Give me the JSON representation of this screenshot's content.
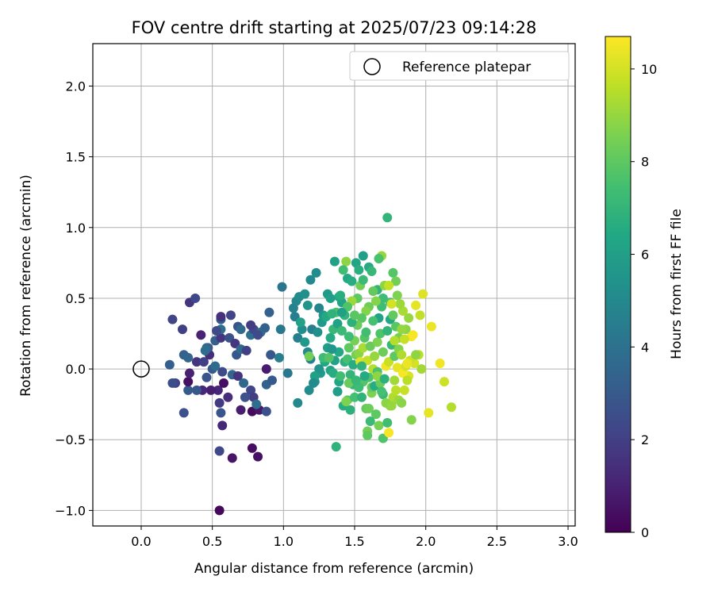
{
  "chart_data": {
    "type": "scatter",
    "title": "FOV centre drift starting at 2025/07/23 09:14:28",
    "xlabel": "Angular distance from reference (arcmin)",
    "ylabel": "Rotation from reference (arcmin)",
    "xlim": [
      -0.34,
      3.05
    ],
    "ylim": [
      -1.11,
      2.3
    ],
    "xticks": [
      0.0,
      0.5,
      1.0,
      1.5,
      2.0,
      2.5,
      3.0
    ],
    "xtick_labels": [
      "0.0",
      "0.5",
      "1.0",
      "1.5",
      "2.0",
      "2.5",
      "3.0"
    ],
    "yticks": [
      -1.0,
      -0.5,
      0.0,
      0.5,
      1.0,
      1.5,
      2.0
    ],
    "ytick_labels": [
      "−1.0",
      "−0.5",
      "0.0",
      "0.5",
      "1.0",
      "1.5",
      "2.0"
    ],
    "grid": true,
    "legend": {
      "placement": "top-right",
      "entries": [
        "Reference platepar"
      ]
    },
    "reference_point": {
      "x": 0.0,
      "y": 0.0,
      "label": "Reference platepar"
    },
    "colorbar": {
      "label": "Hours from first FF file",
      "colormap": "viridis",
      "range": [
        0,
        10.7
      ],
      "ticks": [
        0,
        2,
        4,
        6,
        8,
        10
      ],
      "tick_labels": [
        "0",
        "2",
        "4",
        "6",
        "8",
        "10"
      ]
    },
    "points": [
      [
        0.55,
        -1.0,
        0.2
      ],
      [
        0.64,
        -0.63,
        0.6
      ],
      [
        0.78,
        -0.56,
        0.4
      ],
      [
        0.82,
        -0.62,
        0.5
      ],
      [
        0.55,
        -0.58,
        2.3
      ],
      [
        0.57,
        -0.4,
        1.2
      ],
      [
        0.56,
        -0.31,
        2.8
      ],
      [
        0.78,
        -0.3,
        0.3
      ],
      [
        0.7,
        -0.29,
        0.9
      ],
      [
        0.83,
        -0.29,
        0.7
      ],
      [
        0.88,
        -0.3,
        2.6
      ],
      [
        0.3,
        -0.31,
        2.7
      ],
      [
        0.55,
        -0.24,
        1.8
      ],
      [
        0.61,
        -0.2,
        1.4
      ],
      [
        0.54,
        -0.15,
        1.1
      ],
      [
        0.49,
        -0.15,
        0.9
      ],
      [
        0.43,
        -0.15,
        1.2
      ],
      [
        0.39,
        -0.15,
        2.9
      ],
      [
        0.33,
        -0.15,
        3.0
      ],
      [
        0.24,
        -0.1,
        2.1
      ],
      [
        0.22,
        -0.1,
        2.5
      ],
      [
        0.33,
        -0.09,
        0.5
      ],
      [
        0.34,
        -0.03,
        1.0
      ],
      [
        0.2,
        0.03,
        3.2
      ],
      [
        0.46,
        -0.06,
        2.8
      ],
      [
        0.5,
        0.0,
        3.0
      ],
      [
        0.57,
        -0.02,
        2.4
      ],
      [
        0.58,
        -0.1,
        0.4
      ],
      [
        0.64,
        -0.04,
        3.5
      ],
      [
        0.68,
        -0.05,
        1.6
      ],
      [
        0.72,
        -0.1,
        3.6
      ],
      [
        0.77,
        -0.15,
        2.2
      ],
      [
        0.79,
        -0.2,
        1.9
      ],
      [
        0.81,
        -0.25,
        3.8
      ],
      [
        0.73,
        -0.2,
        2.7
      ],
      [
        0.88,
        -0.11,
        3.4
      ],
      [
        0.92,
        -0.08,
        3.0
      ],
      [
        0.88,
        0.0,
        0.8
      ],
      [
        0.91,
        0.1,
        2.9
      ],
      [
        0.3,
        0.1,
        3.3
      ],
      [
        0.33,
        0.08,
        3.5
      ],
      [
        0.39,
        0.05,
        1.6
      ],
      [
        0.44,
        0.05,
        2.0
      ],
      [
        0.48,
        0.1,
        1.4
      ],
      [
        0.52,
        0.02,
        3.7
      ],
      [
        0.47,
        0.15,
        2.6
      ],
      [
        0.52,
        0.2,
        3.2
      ],
      [
        0.56,
        0.22,
        1.7
      ],
      [
        0.56,
        0.28,
        3.9
      ],
      [
        0.53,
        0.27,
        2.4
      ],
      [
        0.56,
        0.35,
        3.0
      ],
      [
        0.56,
        0.37,
        1.5
      ],
      [
        0.63,
        0.38,
        2.2
      ],
      [
        0.62,
        0.22,
        2.6
      ],
      [
        0.66,
        0.18,
        1.7
      ],
      [
        0.67,
        0.1,
        2.9
      ],
      [
        0.7,
        0.14,
        3.7
      ],
      [
        0.74,
        0.13,
        2.0
      ],
      [
        0.77,
        0.24,
        3.9
      ],
      [
        0.79,
        0.28,
        2.3
      ],
      [
        0.84,
        0.26,
        3.8
      ],
      [
        0.68,
        0.3,
        2.7
      ],
      [
        0.7,
        0.28,
        3.6
      ],
      [
        0.77,
        0.31,
        1.9
      ],
      [
        0.82,
        0.24,
        2.4
      ],
      [
        0.87,
        0.29,
        3.4
      ],
      [
        0.9,
        0.4,
        3.3
      ],
      [
        0.22,
        0.35,
        2.2
      ],
      [
        0.29,
        0.28,
        2.0
      ],
      [
        0.34,
        0.47,
        1.6
      ],
      [
        0.38,
        0.5,
        2.3
      ],
      [
        0.42,
        0.24,
        1.0
      ],
      [
        0.46,
        0.15,
        3.5
      ],
      [
        0.45,
        0.13,
        3.8
      ],
      [
        0.99,
        0.58,
        4.1
      ],
      [
        0.98,
        0.28,
        4.3
      ],
      [
        0.97,
        0.08,
        4.5
      ],
      [
        1.03,
        -0.03,
        4.3
      ],
      [
        1.07,
        0.43,
        4.7
      ],
      [
        1.08,
        0.37,
        4.5
      ],
      [
        1.09,
        0.48,
        4.9
      ],
      [
        1.11,
        0.51,
        5.1
      ],
      [
        1.1,
        0.22,
        4.6
      ],
      [
        1.15,
        0.53,
        5.3
      ],
      [
        1.17,
        0.45,
        5.5
      ],
      [
        1.19,
        0.63,
        5.0
      ],
      [
        1.23,
        0.68,
        5.2
      ],
      [
        1.25,
        0.43,
        4.8
      ],
      [
        1.28,
        0.38,
        5.6
      ],
      [
        1.31,
        0.53,
        5.7
      ],
      [
        1.33,
        0.5,
        6.0
      ],
      [
        1.36,
        0.76,
        6.1
      ],
      [
        1.39,
        0.51,
        6.3
      ],
      [
        1.41,
        0.47,
        6.2
      ],
      [
        1.45,
        0.64,
        6.4
      ],
      [
        1.48,
        0.62,
        6.6
      ],
      [
        1.51,
        0.75,
        6.3
      ],
      [
        1.53,
        0.7,
        6.7
      ],
      [
        1.56,
        0.8,
        6.0
      ],
      [
        1.6,
        0.72,
        6.5
      ],
      [
        1.62,
        0.69,
        7.1
      ],
      [
        1.66,
        0.56,
        6.9
      ],
      [
        1.7,
        0.5,
        7.3
      ],
      [
        1.73,
        1.07,
        7.0
      ],
      [
        1.75,
        0.47,
        7.5
      ],
      [
        1.77,
        0.68,
        7.8
      ],
      [
        1.1,
        -0.24,
        5.0
      ],
      [
        1.18,
        -0.15,
        5.2
      ],
      [
        1.22,
        -0.09,
        5.4
      ],
      [
        1.26,
        -0.03,
        5.8
      ],
      [
        1.33,
        -0.01,
        6.2
      ],
      [
        1.37,
        -0.55,
        6.9
      ],
      [
        1.38,
        -0.16,
        5.9
      ],
      [
        1.39,
        -0.09,
        6.3
      ],
      [
        1.42,
        -0.26,
        6.6
      ],
      [
        1.45,
        -0.22,
        7.9
      ],
      [
        1.47,
        -0.29,
        6.8
      ],
      [
        1.49,
        -0.11,
        7.0
      ],
      [
        1.5,
        -0.2,
        7.5
      ],
      [
        1.55,
        -0.2,
        6.9
      ],
      [
        1.56,
        -0.09,
        7.8
      ],
      [
        1.58,
        -0.28,
        8.1
      ],
      [
        1.59,
        -0.44,
        8.4
      ],
      [
        1.6,
        -0.28,
        8.3
      ],
      [
        1.62,
        -0.17,
        8.6
      ],
      [
        1.65,
        -0.32,
        8.0
      ],
      [
        1.67,
        -0.4,
        8.5
      ],
      [
        1.7,
        -0.49,
        7.7
      ],
      [
        1.73,
        -0.38,
        7.4
      ],
      [
        1.74,
        -0.45,
        10.6
      ],
      [
        1.75,
        -0.26,
        8.9
      ],
      [
        1.77,
        -0.2,
        9.4
      ],
      [
        1.79,
        -0.15,
        9.6
      ],
      [
        1.81,
        -0.22,
        9.1
      ],
      [
        1.83,
        -0.24,
        8.8
      ],
      [
        1.85,
        -0.15,
        9.8
      ],
      [
        1.88,
        -0.05,
        10.1
      ],
      [
        1.9,
        -0.36,
        8.7
      ],
      [
        1.92,
        0.04,
        10.0
      ],
      [
        1.95,
        0.1,
        9.6
      ],
      [
        1.97,
        0.0,
        9.2
      ],
      [
        2.02,
        -0.31,
        10.3
      ],
      [
        2.04,
        0.3,
        10.4
      ],
      [
        2.1,
        0.04,
        10.5
      ],
      [
        2.13,
        -0.09,
        9.9
      ],
      [
        2.18,
        -0.27,
        9.5
      ],
      [
        1.98,
        0.53,
        10.2
      ],
      [
        1.96,
        0.38,
        9.7
      ],
      [
        1.93,
        0.45,
        10.3
      ],
      [
        1.9,
        0.23,
        10.5
      ],
      [
        1.88,
        0.36,
        9.0
      ],
      [
        1.86,
        0.28,
        8.8
      ],
      [
        1.84,
        0.41,
        9.3
      ],
      [
        1.82,
        0.46,
        9.1
      ],
      [
        1.8,
        0.52,
        8.6
      ],
      [
        1.79,
        0.62,
        8.4
      ],
      [
        1.71,
        0.59,
        8.9
      ],
      [
        1.69,
        0.8,
        9.0
      ],
      [
        1.67,
        0.78,
        7.6
      ],
      [
        1.63,
        0.55,
        8.1
      ],
      [
        1.6,
        0.44,
        8.3
      ],
      [
        1.58,
        0.41,
        8.7
      ],
      [
        1.55,
        0.36,
        7.9
      ],
      [
        1.52,
        0.31,
        8.2
      ],
      [
        1.5,
        0.2,
        8.5
      ],
      [
        1.46,
        0.15,
        8.0
      ],
      [
        1.44,
        0.76,
        8.9
      ],
      [
        1.42,
        0.7,
        7.4
      ],
      [
        1.4,
        0.52,
        6.7
      ],
      [
        1.37,
        0.4,
        7.6
      ],
      [
        1.35,
        0.28,
        7.1
      ],
      [
        1.33,
        0.22,
        6.5
      ],
      [
        1.31,
        0.15,
        5.9
      ],
      [
        1.29,
        0.05,
        6.4
      ],
      [
        1.28,
        0.08,
        7.3
      ],
      [
        1.25,
        0.0,
        5.5
      ],
      [
        1.22,
        -0.05,
        6.0
      ],
      [
        1.19,
        0.07,
        4.7
      ],
      [
        1.17,
        0.12,
        5.0
      ],
      [
        1.15,
        0.19,
        5.7
      ],
      [
        1.13,
        0.28,
        5.2
      ],
      [
        1.12,
        0.33,
        6.1
      ],
      [
        1.2,
        0.28,
        4.6
      ],
      [
        1.24,
        0.26,
        5.3
      ],
      [
        1.27,
        0.33,
        5.8
      ],
      [
        1.3,
        0.37,
        6.4
      ],
      [
        1.34,
        0.39,
        6.9
      ],
      [
        1.38,
        0.32,
        6.2
      ],
      [
        1.41,
        0.27,
        7.2
      ],
      [
        1.43,
        0.05,
        6.8
      ],
      [
        1.45,
        0.07,
        7.5
      ],
      [
        1.47,
        -0.04,
        7.0
      ],
      [
        1.49,
        0.03,
        6.6
      ],
      [
        1.51,
        0.1,
        8.4
      ],
      [
        1.53,
        0.11,
        8.8
      ],
      [
        1.54,
        0.05,
        10.2
      ],
      [
        1.56,
        0.15,
        9.3
      ],
      [
        1.57,
        0.22,
        7.8
      ],
      [
        1.59,
        0.06,
        9.7
      ],
      [
        1.61,
        0.16,
        8.2
      ],
      [
        1.63,
        0.0,
        9.5
      ],
      [
        1.64,
        0.09,
        9.0
      ],
      [
        1.66,
        0.19,
        8.6
      ],
      [
        1.68,
        0.25,
        7.7
      ],
      [
        1.7,
        0.12,
        8.3
      ],
      [
        1.72,
        0.02,
        10.5
      ],
      [
        1.74,
        0.05,
        9.8
      ],
      [
        1.76,
        0.17,
        7.1
      ],
      [
        1.78,
        0.09,
        8.0
      ],
      [
        1.8,
        0.01,
        10.3
      ],
      [
        1.81,
        0.14,
        8.7
      ],
      [
        1.83,
        0.1,
        9.4
      ],
      [
        1.84,
        -0.03,
        10.6
      ],
      [
        1.86,
        0.02,
        10.0
      ],
      [
        1.87,
        -0.08,
        9.6
      ],
      [
        1.89,
        0.06,
        9.9
      ],
      [
        1.91,
        0.24,
        10.6
      ],
      [
        1.93,
        0.1,
        8.9
      ],
      [
        1.46,
        0.23,
        7.3
      ],
      [
        1.48,
        0.33,
        6.8
      ],
      [
        1.5,
        0.38,
        7.9
      ],
      [
        1.52,
        0.5,
        8.0
      ],
      [
        1.54,
        0.59,
        8.4
      ],
      [
        1.56,
        0.63,
        7.2
      ],
      [
        1.58,
        0.26,
        7.4
      ],
      [
        1.6,
        -0.06,
        7.7
      ],
      [
        1.62,
        -0.13,
        8.1
      ],
      [
        1.64,
        -0.12,
        6.6
      ],
      [
        1.66,
        -0.02,
        7.6
      ],
      [
        1.68,
        -0.1,
        8.2
      ],
      [
        1.7,
        -0.18,
        7.1
      ],
      [
        1.72,
        -0.24,
        8.8
      ],
      [
        1.76,
        -0.26,
        9.0
      ],
      [
        1.78,
        -0.08,
        9.2
      ],
      [
        1.44,
        -0.23,
        8.6
      ],
      [
        1.53,
        -0.13,
        7.3
      ],
      [
        1.57,
        -0.05,
        6.5
      ],
      [
        1.59,
        -0.47,
        8.0
      ],
      [
        1.61,
        -0.37,
        7.2
      ],
      [
        1.66,
        -0.05,
        8.9
      ],
      [
        1.69,
        -0.16,
        7.5
      ],
      [
        1.71,
        -0.07,
        6.8
      ],
      [
        1.75,
        0.35,
        6.4
      ],
      [
        1.77,
        0.38,
        8.1
      ],
      [
        1.79,
        0.3,
        7.9
      ],
      [
        1.81,
        0.22,
        8.5
      ],
      [
        1.83,
        0.28,
        9.0
      ],
      [
        1.85,
        0.21,
        9.8
      ],
      [
        1.87,
        0.04,
        10.4
      ],
      [
        1.73,
        0.27,
        7.0
      ],
      [
        1.74,
        0.59,
        9.7
      ],
      [
        1.76,
        0.46,
        10.0
      ],
      [
        1.78,
        0.2,
        9.5
      ],
      [
        1.67,
        0.36,
        6.2
      ],
      [
        1.69,
        0.44,
        7.4
      ],
      [
        1.65,
        0.48,
        8.7
      ],
      [
        1.48,
        0.48,
        9.1
      ],
      [
        1.45,
        0.44,
        7.7
      ],
      [
        1.43,
        0.38,
        7.0
      ],
      [
        1.41,
        0.4,
        6.0
      ],
      [
        1.39,
        0.12,
        6.4
      ],
      [
        1.36,
        0.06,
        6.1
      ],
      [
        1.34,
        0.14,
        5.6
      ],
      [
        1.32,
        0.08,
        7.8
      ],
      [
        1.35,
        -0.03,
        6.6
      ],
      [
        1.4,
        -0.05,
        7.4
      ],
      [
        1.46,
        -0.1,
        8.2
      ],
      [
        1.51,
        -0.08,
        7.1
      ],
      [
        1.55,
        0.02,
        6.9
      ],
      [
        1.63,
        0.34,
        7.5
      ],
      [
        1.18,
        0.09,
        8.4
      ],
      [
        1.21,
        -0.1,
        5.1
      ]
    ]
  }
}
